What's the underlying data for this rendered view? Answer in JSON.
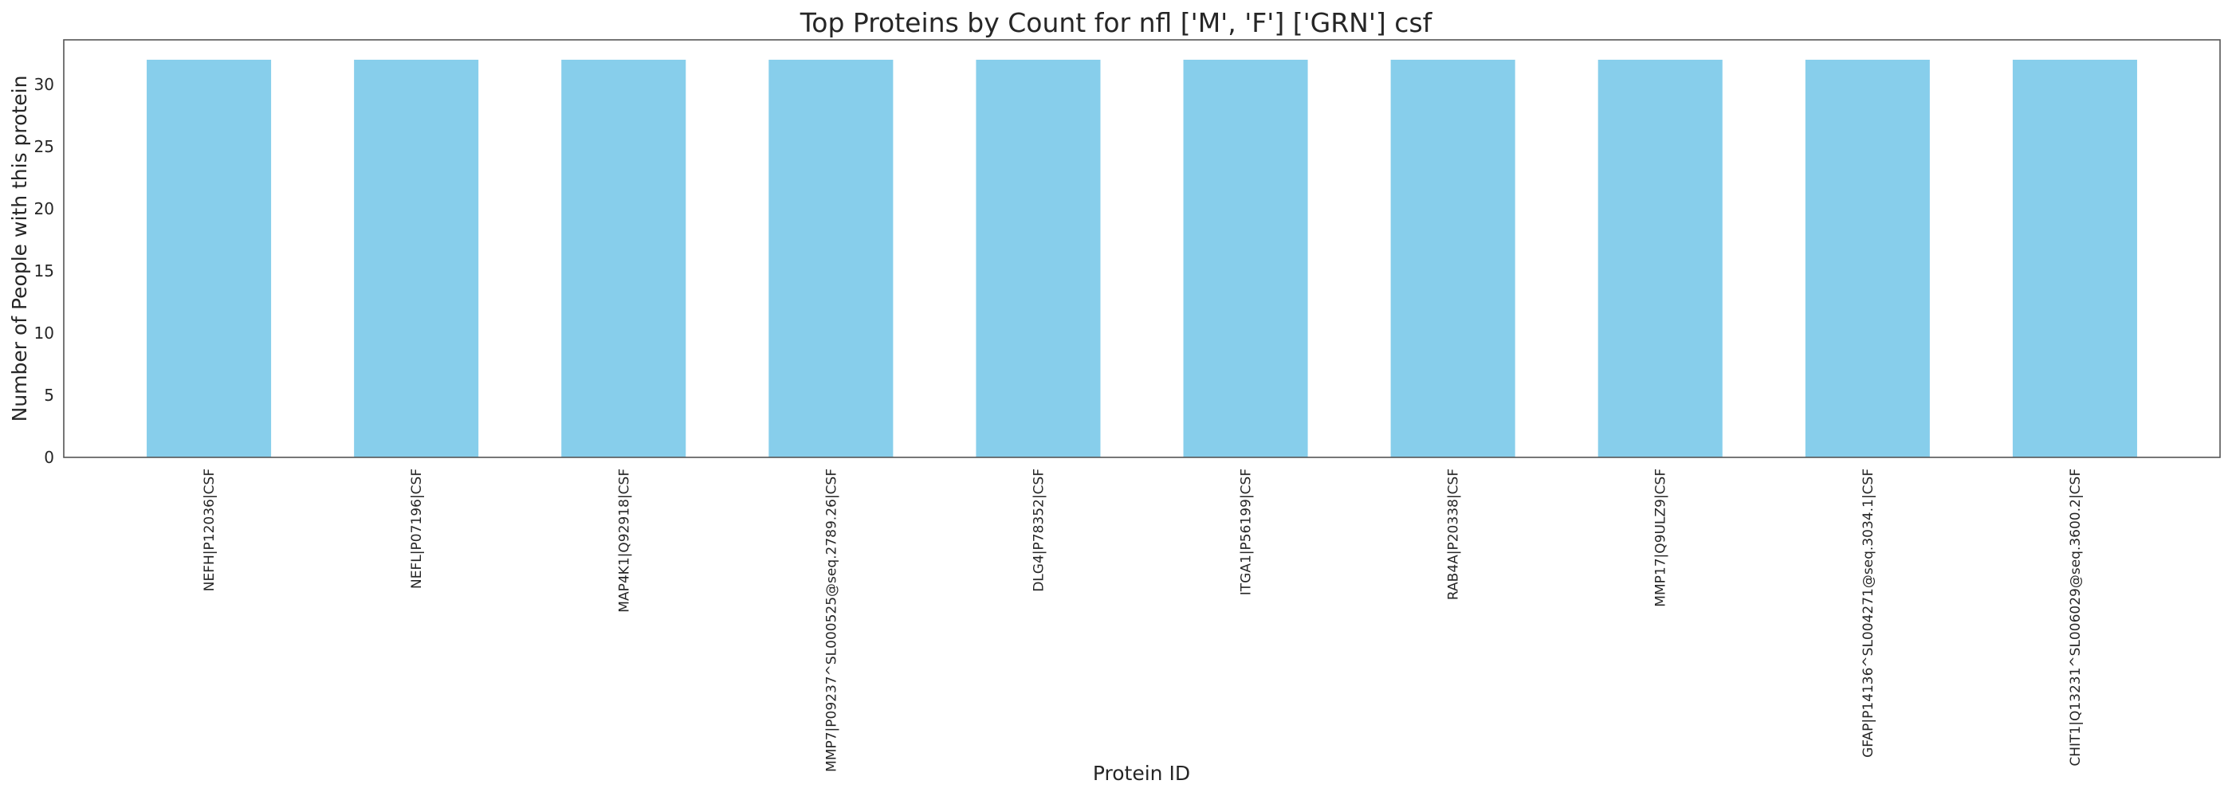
{
  "chart_data": {
    "type": "bar",
    "title": "Top Proteins by Count for nfl ['M', 'F'] ['GRN'] csf",
    "xlabel": "Protein ID",
    "ylabel": "Number of People with this protein",
    "categories": [
      "NEFH|P12036|CSF",
      "NEFL|P07196|CSF",
      "MAP4K1|Q92918|CSF",
      "MMP7|P09237^SL000525@seq.2789.26|CSF",
      "DLG4|P78352|CSF",
      "ITGA1|P56199|CSF",
      "RAB4A|P20338|CSF",
      "MMP17|Q9ULZ9|CSF",
      "GFAP|P14136^SL004271@seq.3034.1|CSF",
      "CHIT1|Q13231^SL006029@seq.3600.2|CSF"
    ],
    "values": [
      32,
      32,
      32,
      32,
      32,
      32,
      32,
      32,
      32,
      32
    ],
    "ylim": [
      0,
      33.6
    ],
    "yticks": [
      0,
      5,
      10,
      15,
      20,
      25,
      30
    ],
    "grid": false,
    "bar_color": "#87CEEB",
    "axes_color": "#555555",
    "text_color": "#262626"
  }
}
